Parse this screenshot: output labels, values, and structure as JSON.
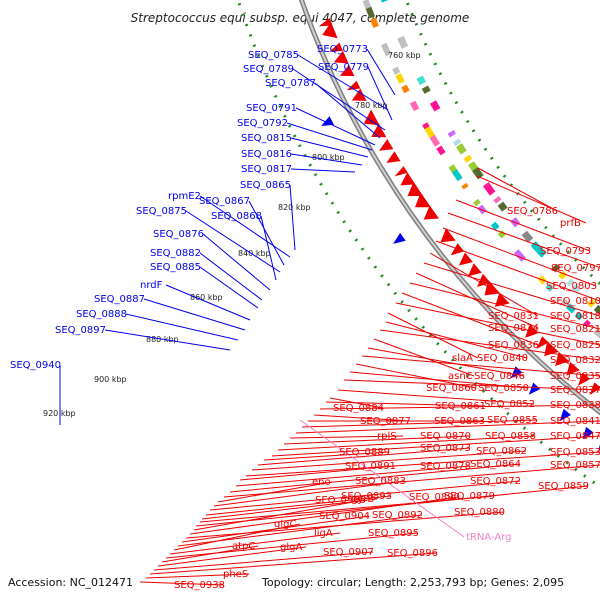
{
  "title": "Streptococcus equi subsp. equi 4047, complete genome",
  "footer": {
    "accession": "Accession: NC_012471",
    "topology": "Topology: circular; Length: 2,253,793 bp; Genes: 2,095"
  },
  "colors": {
    "forward": "#0000ee",
    "reverse": "#ee0000",
    "rna": "#ee82c8",
    "backbone": "#808080",
    "dots": "#228b22"
  },
  "scale_labels": [
    "760 kbp",
    "780 kbp",
    "800 kbp",
    "820 kbp",
    "840 kbp",
    "860 kbp",
    "880 kbp",
    "900 kbp",
    "920 kbp"
  ],
  "labels_forward": [
    "SEQ_0773",
    "SEQ_0785",
    "SEQ_0779",
    "SEQ_0789",
    "SEQ_0787",
    "SEQ_0791",
    "SEQ_0792",
    "SEQ_0815",
    "SEQ_0816",
    "SEQ_0817",
    "SEQ_0865",
    "rpmE2",
    "SEQ_0867",
    "SEQ_0875",
    "SEQ_0868",
    "SEQ_0876",
    "SEQ_0882",
    "SEQ_0885",
    "nrdF",
    "SEQ_0887",
    "SEQ_0888",
    "SEQ_0897",
    "SEQ_0940"
  ],
  "labels_reverse": [
    "SEQ_0786",
    "prfB",
    "SEQ_0793",
    "SEQ_0797",
    "SEQ_0803",
    "SEQ_0810",
    "SEQ_0831",
    "SEQ_0818",
    "SEQ_0834",
    "SEQ_0821",
    "SEQ_0836",
    "SEQ_0825",
    "slaA",
    "SEQ_0840",
    "SEQ_0832",
    "asnC",
    "SEQ_0846",
    "SEQ_0835",
    "SEQ_0860",
    "SEQ_0850",
    "SEQ_0837",
    "SEQ_0852",
    "SEQ_0884",
    "SEQ_0861",
    "SEQ_0838",
    "SEQ_0877",
    "SEQ_0863",
    "SEQ_0855",
    "SEQ_0841",
    "rplS",
    "SEQ_0870",
    "SEQ_0858",
    "SEQ_0847",
    "SEQ_0889",
    "SEQ_0873",
    "SEQ_0862",
    "SEQ_0853",
    "SEQ_0891",
    "SEQ_0878",
    "SEQ_0864",
    "SEQ_0857",
    "eno",
    "SEQ_0883",
    "SEQ_0872",
    "SEQ_0893",
    "gyrB",
    "SEQ_0879",
    "SEQ_0859",
    "SEQ_0905",
    "SEQ_0890",
    "SEQ_0880",
    "SEQ_0904",
    "SEQ_0892",
    "glgC",
    "ligA",
    "SEQ_0895",
    "atpC",
    "glgA",
    "SEQ_0907",
    "SEQ_0896",
    "pheS",
    "SEQ_0938"
  ],
  "labels_rna": [
    "tRNA-Arg"
  ]
}
